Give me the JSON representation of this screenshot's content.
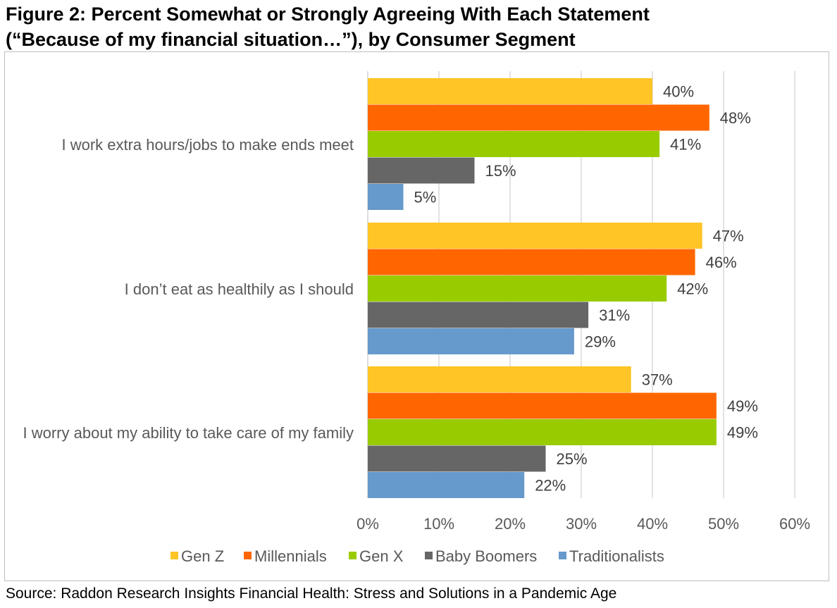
{
  "title_line1": "Figure 2: Percent Somewhat or Strongly Agreeing With Each Statement",
  "title_line2": "(“Because of my financial situation…”), by Consumer Segment",
  "source": "Source: Raddon Research Insights Financial Health: Stress and Solutions in a Pandemic Age",
  "chart_data": {
    "type": "bar",
    "orientation": "horizontal",
    "title": "Figure 2: Percent Somewhat or Strongly Agreeing With Each Statement (“Because of my financial situation…”), by Consumer Segment",
    "categories": [
      "I work extra hours/jobs to make ends meet",
      "I don’t eat as healthily as I should",
      "I worry about my ability to take care of my family"
    ],
    "series": [
      {
        "name": "Gen Z",
        "color": "#FFC425",
        "values": [
          40,
          47,
          37
        ],
        "labels": [
          "40%",
          "47%",
          "37%"
        ]
      },
      {
        "name": "Millennials",
        "color": "#FF6600",
        "values": [
          48,
          46,
          49
        ],
        "labels": [
          "48%",
          "46%",
          "49%"
        ]
      },
      {
        "name": "Gen X",
        "color": "#99CC00",
        "values": [
          41,
          42,
          49
        ],
        "labels": [
          "41%",
          "42%",
          "49%"
        ]
      },
      {
        "name": "Baby Boomers",
        "color": "#666666",
        "values": [
          15,
          31,
          25
        ],
        "labels": [
          "15%",
          "31%",
          "25%"
        ]
      },
      {
        "name": "Traditionalists",
        "color": "#6699CC",
        "values": [
          5,
          29,
          22
        ],
        "labels": [
          "5%",
          "29%",
          "22%"
        ]
      }
    ],
    "xlim": [
      0,
      60
    ],
    "xticks": [
      "0%",
      "10%",
      "20%",
      "30%",
      "40%",
      "50%",
      "60%"
    ],
    "grid": true,
    "legend_position": "bottom"
  }
}
